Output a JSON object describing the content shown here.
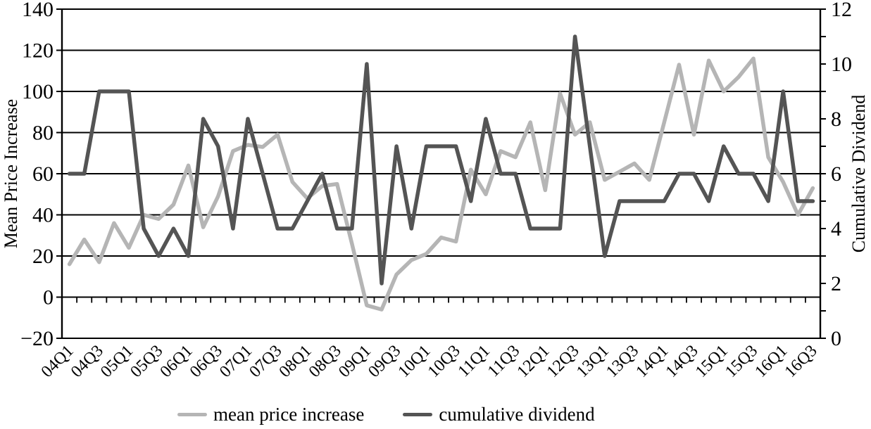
{
  "page": {
    "background": "#ffffff"
  },
  "chart_data": {
    "type": "line",
    "title": "",
    "categories": [
      "04Q1",
      "04Q2",
      "04Q3",
      "04Q4",
      "05Q1",
      "05Q2",
      "05Q3",
      "05Q4",
      "06Q1",
      "06Q2",
      "06Q3",
      "06Q4",
      "07Q1",
      "07Q2",
      "07Q3",
      "07Q4",
      "08Q1",
      "08Q2",
      "08Q3",
      "08Q4",
      "09Q1",
      "09Q2",
      "09Q3",
      "09Q4",
      "10Q1",
      "10Q2",
      "10Q3",
      "10Q4",
      "11Q1",
      "11Q2",
      "11Q3",
      "11Q4",
      "12Q1",
      "12Q2",
      "12Q3",
      "12Q4",
      "13Q1",
      "13Q2",
      "13Q3",
      "13Q4",
      "14Q1",
      "14Q2",
      "14Q3",
      "14Q4",
      "15Q1",
      "15Q2",
      "15Q3",
      "15Q4",
      "16Q1",
      "16Q2",
      "16Q3"
    ],
    "x_tick_labels": [
      "04Q1",
      "04Q3",
      "05Q1",
      "05Q3",
      "06Q1",
      "06Q3",
      "07Q1",
      "07Q3",
      "08Q1",
      "08Q3",
      "09Q1",
      "09Q3",
      "10Q1",
      "10Q3",
      "11Q1",
      "11Q3",
      "12Q1",
      "12Q3",
      "13Q1",
      "13Q3",
      "14Q1",
      "14Q3",
      "15Q1",
      "15Q3",
      "16Q1",
      "16Q3"
    ],
    "series": [
      {
        "name": "mean price increase",
        "axis": "left",
        "color": "#b5b5b5",
        "values": [
          16,
          28,
          17,
          36,
          24,
          40,
          38,
          45,
          64,
          34,
          49,
          71,
          74,
          73,
          79,
          56,
          48,
          54,
          55,
          26,
          -4,
          -6,
          11,
          18,
          21,
          29,
          27,
          62,
          50,
          71,
          68,
          85,
          52,
          99,
          79,
          85,
          57,
          61,
          65,
          57,
          85,
          113,
          79,
          115,
          100,
          107,
          116,
          68,
          56,
          40,
          53
        ]
      },
      {
        "name": "cumulative dividend",
        "axis": "right",
        "color": "#545454",
        "values": [
          6,
          6,
          9,
          9,
          9,
          4,
          3,
          4,
          3,
          8,
          7,
          4,
          8,
          6,
          4,
          4,
          5,
          6,
          4,
          4,
          10,
          2,
          7,
          4,
          7,
          7,
          7,
          5,
          8,
          6,
          6,
          4,
          4,
          4,
          11,
          7,
          3,
          5,
          5,
          5,
          5,
          6,
          6,
          5,
          7,
          6,
          6,
          5,
          9,
          5,
          5
        ]
      }
    ],
    "left_axis": {
      "title": "Mean Price Increase",
      "min": -20,
      "max": 140,
      "tick_step": 20,
      "tick_labels": [
        "140",
        "120",
        "100",
        "80",
        "60",
        "40",
        "20",
        "0",
        "−20"
      ]
    },
    "right_axis": {
      "title": "Cumulative Dividend",
      "min": 0,
      "max": 12,
      "tick_step": 2,
      "minor_tick_step": 1,
      "tick_labels": [
        "12",
        "10",
        "8",
        "6",
        "4",
        "2",
        "0"
      ]
    },
    "legend": {
      "position": "bottom"
    },
    "grid": "horizontal",
    "axis_color": "#000000"
  }
}
